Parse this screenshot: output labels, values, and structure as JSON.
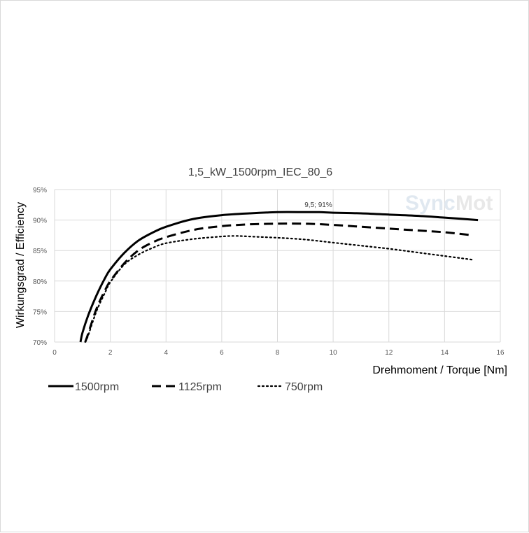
{
  "chart_data": {
    "type": "line",
    "title": "1,5_kW_1500rpm_IEC_80_6",
    "xlabel": "Drehmoment / Torque [Nm]",
    "ylabel": "Wirkungsgrad / Efficiency",
    "xlim": [
      0,
      16
    ],
    "ylim": [
      70,
      95
    ],
    "x_ticks": [
      "0",
      "2",
      "4",
      "6",
      "8",
      "10",
      "12",
      "14",
      "16"
    ],
    "y_ticks": [
      "70%",
      "75%",
      "80%",
      "85%",
      "90%",
      "95%"
    ],
    "grid": true,
    "legend_position": "bottom",
    "annotation": {
      "text": "9,5; 91%",
      "x": 9.5,
      "y": 91
    },
    "watermark": {
      "part1": "Sync",
      "part2": "Mot",
      "color1": "#dde6ef",
      "color2": "#e6e6e6"
    },
    "series": [
      {
        "name": "1500rpm",
        "style": "solid",
        "color": "#000000",
        "x": [
          0.93,
          1.0,
          1.2,
          1.5,
          1.8,
          2.0,
          2.5,
          3.0,
          3.5,
          4.0,
          5.0,
          6.0,
          7.0,
          8.0,
          9.0,
          9.5,
          10.0,
          11.0,
          12.0,
          13.0,
          14.0,
          15.2
        ],
        "y": [
          70.0,
          71.5,
          74.3,
          77.6,
          80.4,
          81.9,
          84.6,
          86.6,
          87.9,
          88.9,
          90.2,
          90.8,
          91.1,
          91.3,
          91.3,
          91.3,
          91.2,
          91.1,
          90.9,
          90.7,
          90.4,
          90.0
        ]
      },
      {
        "name": "1125rpm",
        "style": "dashed",
        "color": "#000000",
        "x": [
          1.1,
          1.2,
          1.5,
          1.8,
          2.0,
          2.5,
          3.0,
          3.5,
          4.0,
          5.0,
          6.0,
          7.0,
          8.0,
          9.0,
          10.0,
          11.0,
          12.0,
          13.0,
          14.0,
          15.0
        ],
        "y": [
          70.0,
          71.3,
          75.4,
          78.4,
          80.0,
          82.9,
          85.0,
          86.3,
          87.2,
          88.4,
          89.0,
          89.3,
          89.4,
          89.4,
          89.2,
          88.9,
          88.6,
          88.3,
          88.0,
          87.5
        ]
      },
      {
        "name": "750rpm",
        "style": "dotted",
        "color": "#000000",
        "x": [
          1.1,
          1.2,
          1.5,
          1.8,
          2.0,
          2.5,
          3.0,
          3.5,
          4.0,
          5.0,
          6.0,
          6.5,
          7.0,
          8.0,
          9.0,
          10.0,
          11.0,
          12.0,
          13.0,
          14.0,
          15.0
        ],
        "y": [
          70.0,
          71.0,
          75.0,
          78.0,
          79.8,
          82.7,
          84.3,
          85.4,
          86.2,
          86.9,
          87.3,
          87.4,
          87.3,
          87.1,
          86.8,
          86.3,
          85.8,
          85.3,
          84.7,
          84.1,
          83.5
        ]
      }
    ]
  }
}
